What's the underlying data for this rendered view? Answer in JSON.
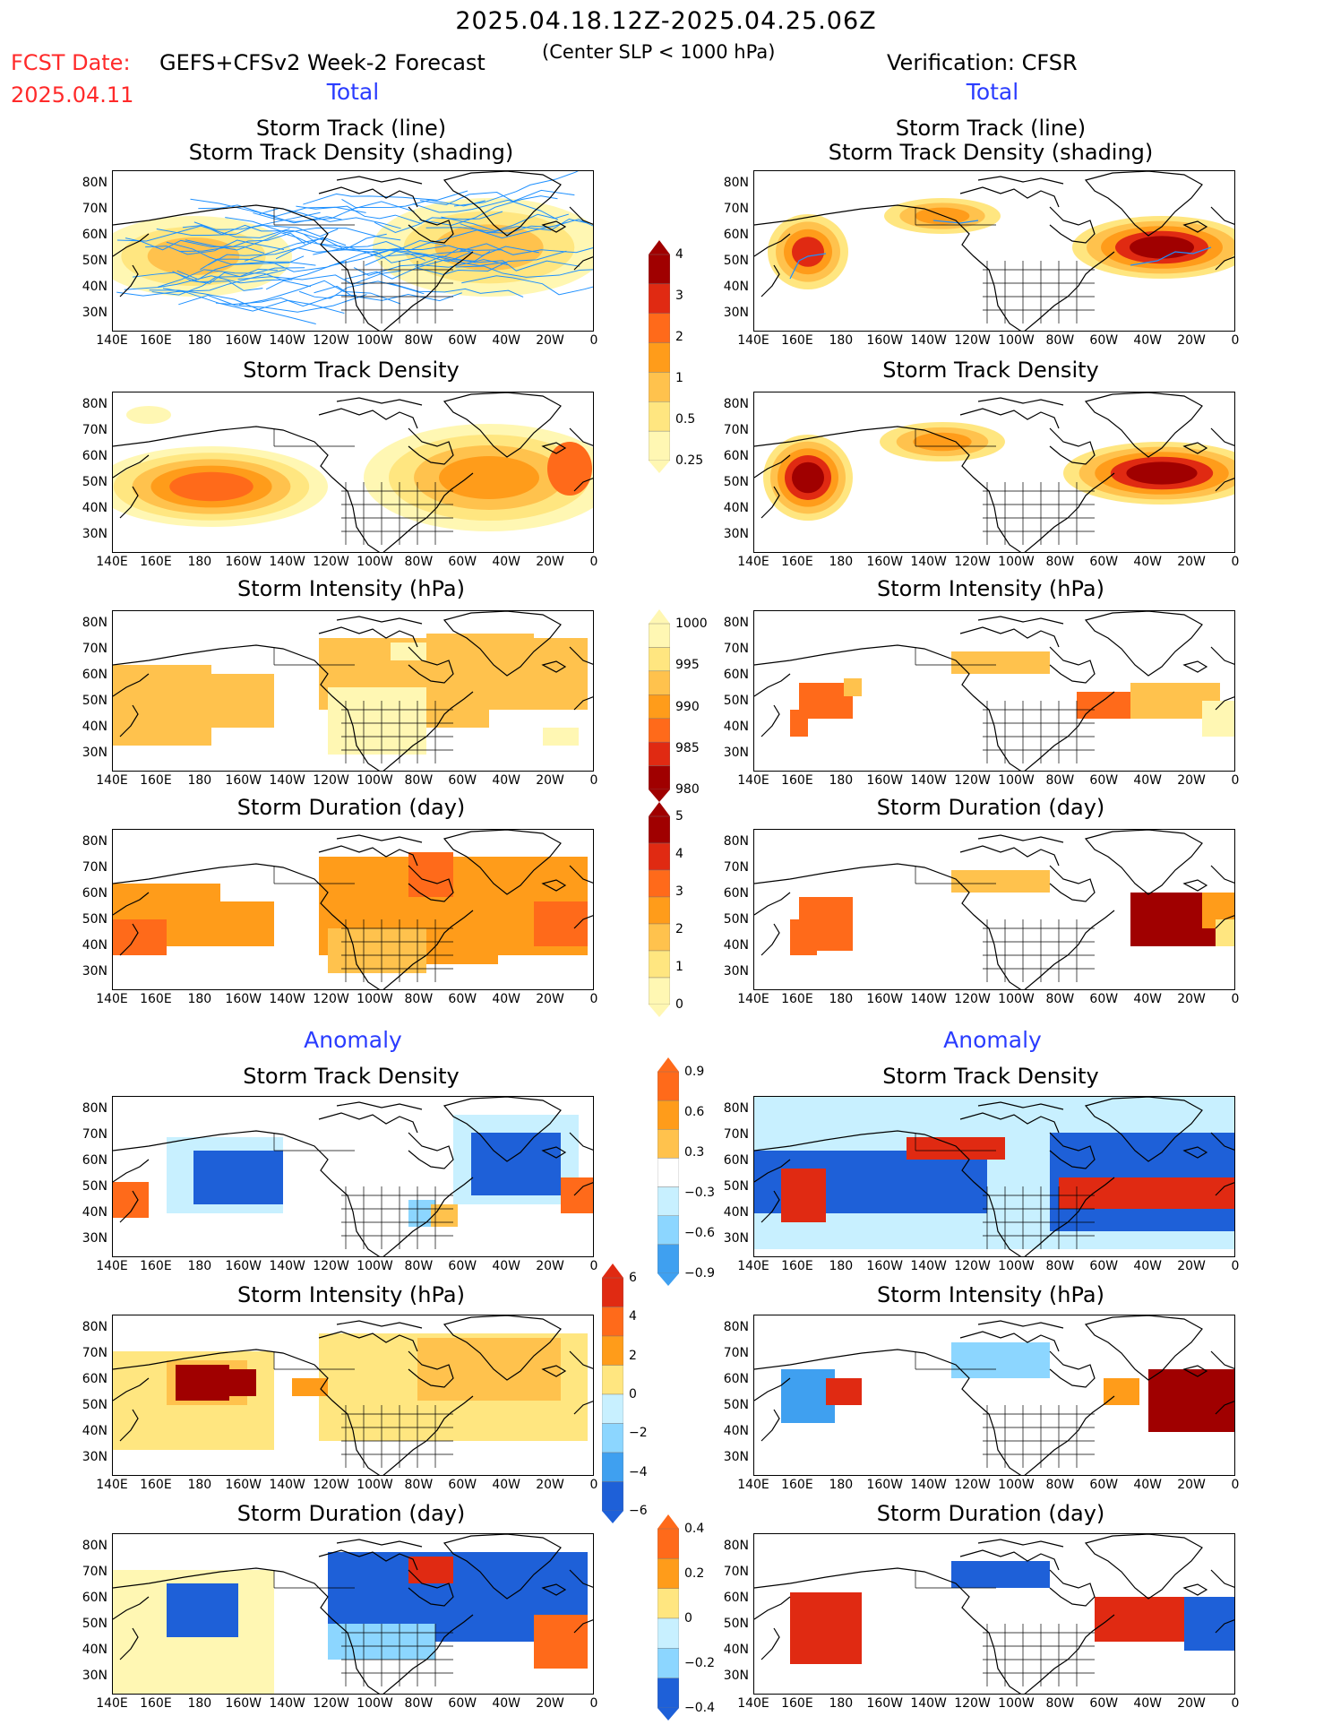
{
  "header": {
    "title": "2025.04.18.12Z-2025.04.25.06Z",
    "fcst_label": "FCST Date:",
    "fcst_date": "2025.04.11",
    "model": "GEFS+CFSv2 Week-2 Forecast",
    "criterion": "(Center SLP < 1000 hPa)",
    "verification": "Verification: CFSR"
  },
  "sections": {
    "total_left": "Total",
    "total_right": "Total",
    "anomaly_left": "Anomaly",
    "anomaly_right": "Anomaly"
  },
  "panel_titles": {
    "track_line": "Storm Track (line)",
    "track_shading": "Storm Track Density (shading)",
    "density": "Storm Track Density",
    "intensity": "Storm Intensity (hPa)",
    "duration": "Storm Duration (day)"
  },
  "axes": {
    "lat_labels": [
      "80N",
      "70N",
      "60N",
      "50N",
      "40N",
      "30N"
    ],
    "lon_labels": [
      "140E",
      "160E",
      "180",
      "160W",
      "140W",
      "120W",
      "100W",
      "80W",
      "60W",
      "40W",
      "20W",
      "0"
    ]
  },
  "colorbars": {
    "density_total": [
      "4",
      "3",
      "2",
      "1",
      "0.5",
      "0.25"
    ],
    "intensity_total": [
      "1000",
      "995",
      "990",
      "985",
      "980"
    ],
    "duration_total": [
      "5",
      "4",
      "3",
      "2",
      "1",
      "0"
    ],
    "density_anom": [
      "0.9",
      "0.6",
      "0.3",
      "−0.3",
      "−0.6",
      "−0.9"
    ],
    "intensity_anom": [
      "6",
      "4",
      "2",
      "0",
      "−2",
      "−4",
      "−6"
    ],
    "duration_anom": [
      "0.4",
      "0.2",
      "0",
      "−0.2",
      "−0.4"
    ]
  },
  "colors": {
    "section_label": "#2a3cff",
    "fcst": "#ff2a2a",
    "track_line": "#1e90ff",
    "warm": [
      "#fff7b3",
      "#ffe680",
      "#ffc24d",
      "#ff9c1a",
      "#ff6a1a",
      "#e02a12",
      "#a00000"
    ],
    "cool": [
      "#c8f0ff",
      "#8cd6ff",
      "#3fa0f0",
      "#1e60d8"
    ]
  }
}
